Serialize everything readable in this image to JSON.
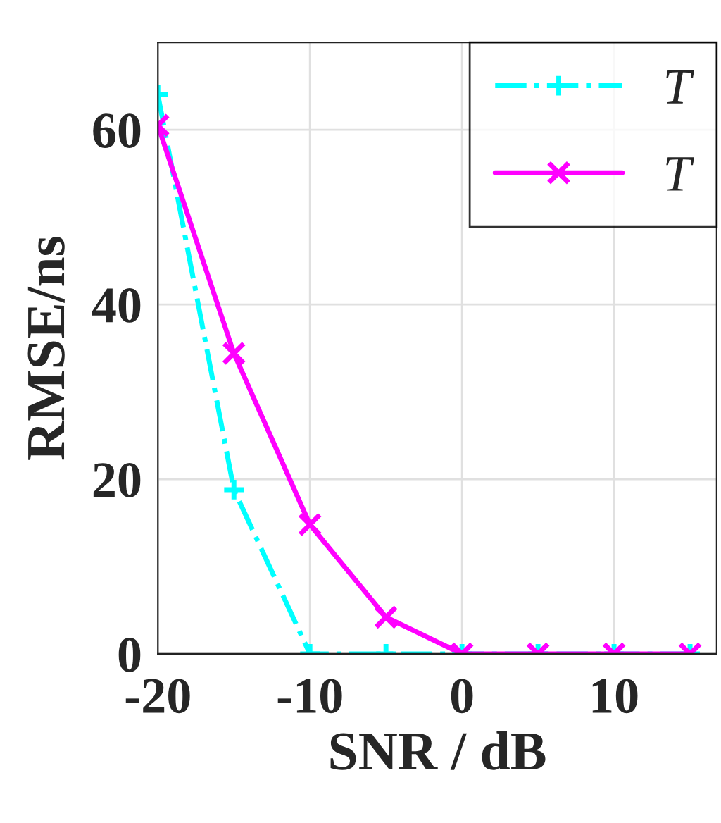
{
  "chart_data": {
    "type": "line",
    "xlabel": "SNR / dB",
    "ylabel": "RMSE/ns",
    "x": [
      -20,
      -15,
      -10,
      -5,
      0,
      5,
      10,
      15
    ],
    "series": [
      {
        "name": "T",
        "color": "#00ffff",
        "line_style": "dashdot",
        "marker": "plus",
        "values": [
          64.0,
          18.8,
          0,
          0,
          0,
          0,
          0,
          0
        ]
      },
      {
        "name": "T",
        "color": "#ff00ff",
        "line_style": "solid",
        "marker": "cross",
        "values": [
          60.5,
          34.4,
          14.8,
          4.2,
          0,
          0,
          0,
          0
        ]
      }
    ],
    "xlim": [
      -20,
      16.75
    ],
    "xticks": [
      -20,
      -10,
      0,
      10
    ],
    "ylim": [
      0,
      70
    ],
    "yticks": [
      0,
      20,
      40,
      60
    ],
    "grid": true,
    "legend": "top right"
  }
}
